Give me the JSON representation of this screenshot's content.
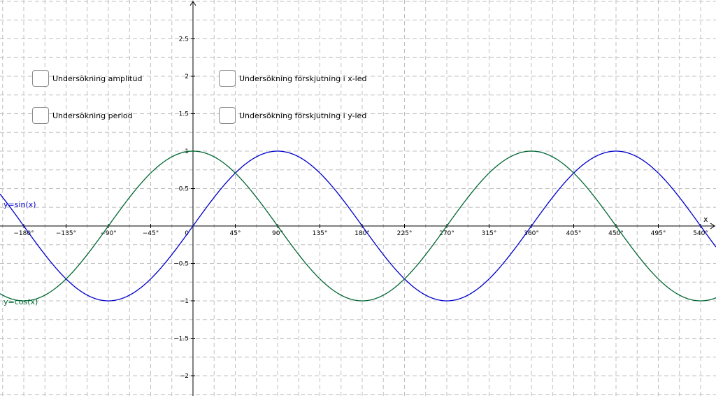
{
  "checkboxes": [
    {
      "id": "amplitud",
      "label": "Undersökning amplitud",
      "checked": false
    },
    {
      "id": "period",
      "label": "Undersökning period",
      "checked": false
    },
    {
      "id": "x-shift",
      "label": "Undersökning förskjutning i x-led",
      "checked": false
    },
    {
      "id": "y-shift",
      "label": "Undersökning förskjutning i y-led",
      "checked": false
    }
  ],
  "chart_data": {
    "type": "line",
    "x_axis_label": "x",
    "x_unit": "degrees",
    "xlim": [
      -205,
      545
    ],
    "ylim": [
      -2.3,
      3.0
    ],
    "x_ticks": [
      -180,
      -135,
      -90,
      -45,
      0,
      45,
      90,
      135,
      180,
      225,
      270,
      315,
      360,
      405,
      450,
      495,
      540
    ],
    "x_tick_labels": [
      "−180°",
      "−135°",
      "−90°",
      "−45°",
      "0",
      "45°",
      "90°",
      "135°",
      "180°",
      "225°",
      "270°",
      "315°",
      "360°",
      "405°",
      "450°",
      "495°",
      "540°"
    ],
    "y_ticks": [
      -2,
      -1.5,
      -1,
      -0.5,
      0.5,
      1,
      1.5,
      2,
      2.5
    ],
    "y_tick_labels": [
      "−2",
      "−1.5",
      "−1",
      "−0.5",
      "0.5",
      "1",
      "1.5",
      "2",
      "2.5"
    ],
    "grid": true,
    "series": [
      {
        "name": "y=sin(x)",
        "function": "sin",
        "color": "#0000cc",
        "x": [
          -180,
          -90,
          0,
          90,
          180,
          270,
          360,
          450,
          540
        ],
        "y": [
          0,
          -1,
          0,
          1,
          0,
          -1,
          0,
          1,
          0
        ]
      },
      {
        "name": "y=cos(x)",
        "function": "cos",
        "color": "#006633",
        "x": [
          -180,
          -90,
          0,
          90,
          180,
          270,
          360,
          450,
          540
        ],
        "y": [
          -1,
          0,
          1,
          0,
          -1,
          0,
          1,
          0,
          -1
        ]
      }
    ]
  }
}
